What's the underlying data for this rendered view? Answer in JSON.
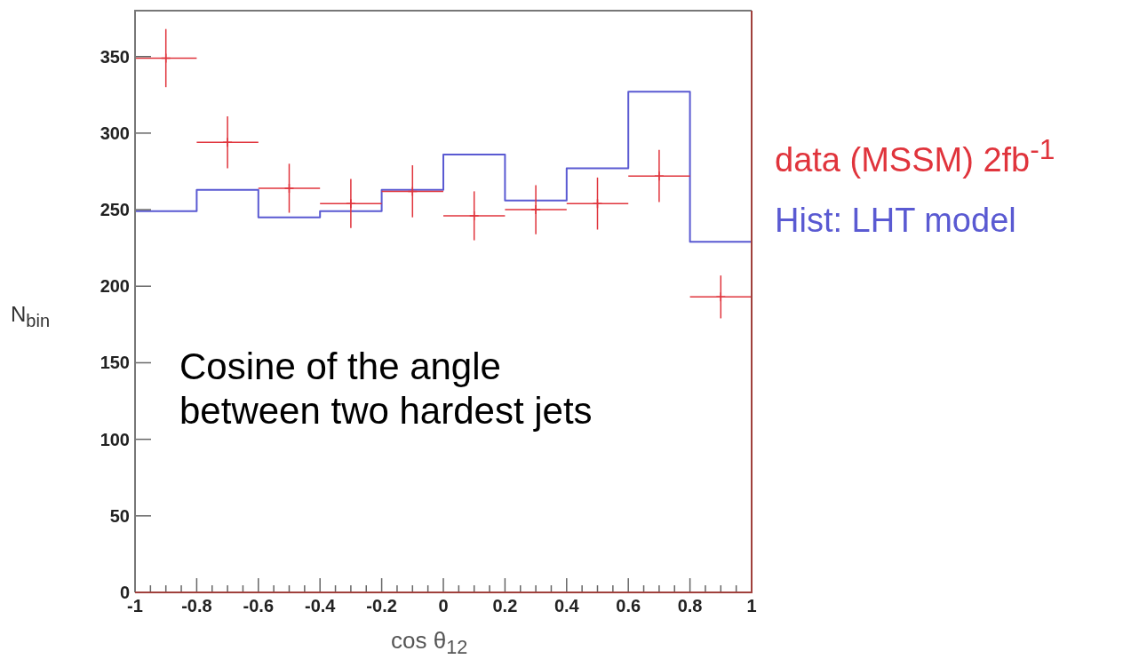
{
  "chart_data": {
    "type": "histogram",
    "xlabel": "cos θ$_{12}$",
    "ylabel": "N$_{bin}$",
    "annotations": [
      "Cosine of the angle between two hardest jets"
    ],
    "bins": [
      -1,
      -0.8,
      -0.6,
      -0.4,
      -0.2,
      0,
      0.2,
      0.4,
      0.6,
      0.8,
      1
    ],
    "series": [
      {
        "name": "data (MSSM) 2fb$^{-1}$",
        "type": "scatter",
        "color": "#e0343c",
        "x": [
          -0.9,
          -0.7,
          -0.5,
          -0.3,
          -0.1,
          0.1,
          0.3,
          0.5,
          0.7,
          0.9
        ],
        "values": [
          349,
          294,
          264,
          254,
          262,
          246,
          250,
          254,
          272,
          193
        ],
        "errors": [
          19,
          17,
          16,
          16,
          17,
          16,
          16,
          17,
          17,
          14
        ],
        "xerrors": [
          0.1,
          0.1,
          0.1,
          0.1,
          0.1,
          0.1,
          0.1,
          0.1,
          0.1,
          0.1
        ],
        "marker": "cross"
      },
      {
        "name": "Hist: LHT model",
        "color": "#5a5ad2",
        "values": [
          249,
          263,
          245,
          249,
          263,
          286,
          256,
          277,
          327,
          229
        ]
      }
    ],
    "xlim": [
      -1,
      1
    ],
    "ylim": [
      0,
      380
    ],
    "xticks": [
      -1,
      -0.8,
      -0.6,
      -0.4,
      -0.2,
      0,
      0.2,
      0.4,
      0.6,
      0.8,
      1
    ],
    "yticks": [
      0,
      50,
      100,
      150,
      200,
      250,
      300,
      350
    ],
    "grid": false,
    "legend": "right"
  }
}
